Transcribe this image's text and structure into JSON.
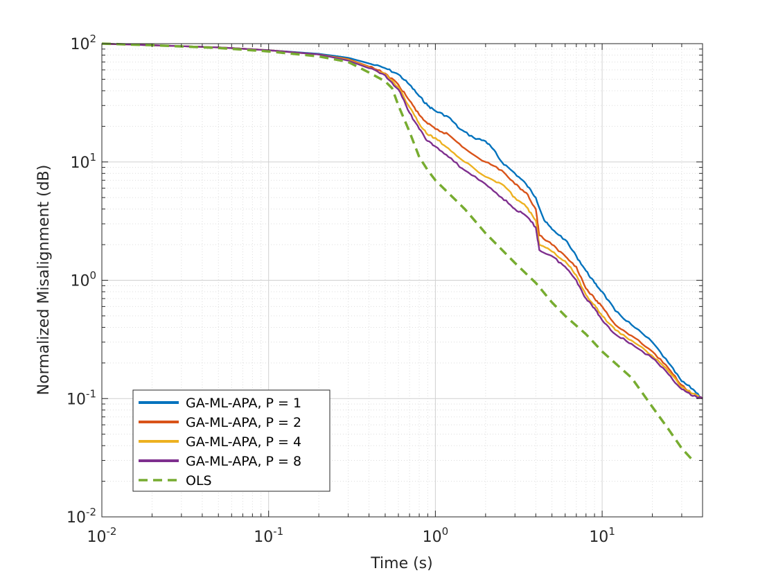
{
  "chart_data": {
    "type": "line",
    "title": "",
    "xlabel": "Time (s)",
    "ylabel": "Normalized Misalignment (dB)",
    "xscale": "log",
    "yscale": "log",
    "xlim": [
      0.01,
      40
    ],
    "ylim": [
      0.01,
      100
    ],
    "grid": true,
    "minor_grid": true,
    "legend_location": "bottom-left",
    "x_ticks": [
      {
        "value": 0.01,
        "base": "10",
        "exp": "-2"
      },
      {
        "value": 0.1,
        "base": "10",
        "exp": "-1"
      },
      {
        "value": 1,
        "base": "10",
        "exp": "0"
      },
      {
        "value": 10,
        "base": "10",
        "exp": "1"
      }
    ],
    "y_ticks": [
      {
        "value": 0.01,
        "base": "10",
        "exp": "-2"
      },
      {
        "value": 0.1,
        "base": "10",
        "exp": "-1"
      },
      {
        "value": 1,
        "base": "10",
        "exp": "0"
      },
      {
        "value": 10,
        "base": "10",
        "exp": "1"
      },
      {
        "value": 100,
        "base": "10",
        "exp": "2"
      }
    ],
    "series": [
      {
        "name": "GA-ML-APA, P = 1",
        "color": "#0072BD",
        "style": "solid",
        "points": [
          [
            0.01,
            100
          ],
          [
            0.02,
            97
          ],
          [
            0.05,
            93
          ],
          [
            0.1,
            88
          ],
          [
            0.2,
            82
          ],
          [
            0.3,
            76
          ],
          [
            0.4,
            68
          ],
          [
            0.5,
            62
          ],
          [
            0.6,
            55
          ],
          [
            0.7,
            45
          ],
          [
            0.8,
            36
          ],
          [
            0.9,
            30
          ],
          [
            1.0,
            27
          ],
          [
            1.2,
            24
          ],
          [
            1.4,
            19
          ],
          [
            1.7,
            16
          ],
          [
            2.0,
            15
          ],
          [
            2.2,
            13
          ],
          [
            2.5,
            10
          ],
          [
            3.0,
            8
          ],
          [
            3.5,
            6.5
          ],
          [
            4.0,
            5
          ],
          [
            4.5,
            3.2
          ],
          [
            5.0,
            2.7
          ],
          [
            6.0,
            2.2
          ],
          [
            7.0,
            1.6
          ],
          [
            8.0,
            1.2
          ],
          [
            9.0,
            0.95
          ],
          [
            10.0,
            0.8
          ],
          [
            12.0,
            0.55
          ],
          [
            15.0,
            0.42
          ],
          [
            20.0,
            0.3
          ],
          [
            25.0,
            0.2
          ],
          [
            30.0,
            0.14
          ],
          [
            35.0,
            0.12
          ],
          [
            40.0,
            0.1
          ]
        ]
      },
      {
        "name": "GA-ML-APA, P = 2",
        "color": "#D95319",
        "style": "solid",
        "points": [
          [
            0.01,
            100
          ],
          [
            0.02,
            97
          ],
          [
            0.05,
            93
          ],
          [
            0.1,
            88
          ],
          [
            0.2,
            81
          ],
          [
            0.3,
            74
          ],
          [
            0.4,
            64
          ],
          [
            0.5,
            56
          ],
          [
            0.6,
            45
          ],
          [
            0.7,
            33
          ],
          [
            0.8,
            25
          ],
          [
            0.9,
            21
          ],
          [
            1.0,
            19
          ],
          [
            1.2,
            17
          ],
          [
            1.5,
            13
          ],
          [
            2.0,
            10
          ],
          [
            2.5,
            8.5
          ],
          [
            3.0,
            6.5
          ],
          [
            3.5,
            5.5
          ],
          [
            4.0,
            4.0
          ],
          [
            4.2,
            2.4
          ],
          [
            5.0,
            2.0
          ],
          [
            6.0,
            1.6
          ],
          [
            7.0,
            1.3
          ],
          [
            8.0,
            0.85
          ],
          [
            9.0,
            0.7
          ],
          [
            10.0,
            0.6
          ],
          [
            12.0,
            0.42
          ],
          [
            15.0,
            0.34
          ],
          [
            20.0,
            0.25
          ],
          [
            25.0,
            0.18
          ],
          [
            30.0,
            0.13
          ],
          [
            35.0,
            0.11
          ],
          [
            40.0,
            0.1
          ]
        ]
      },
      {
        "name": "GA-ML-APA, P = 4",
        "color": "#EDB120",
        "style": "solid",
        "points": [
          [
            0.01,
            100
          ],
          [
            0.02,
            97
          ],
          [
            0.05,
            93
          ],
          [
            0.1,
            88
          ],
          [
            0.2,
            81
          ],
          [
            0.3,
            73
          ],
          [
            0.4,
            63
          ],
          [
            0.5,
            55
          ],
          [
            0.6,
            43
          ],
          [
            0.7,
            29
          ],
          [
            0.8,
            21
          ],
          [
            0.9,
            17
          ],
          [
            1.0,
            16
          ],
          [
            1.2,
            13
          ],
          [
            1.5,
            10
          ],
          [
            2.0,
            7.5
          ],
          [
            2.5,
            6.5
          ],
          [
            3.0,
            5
          ],
          [
            3.5,
            4.2
          ],
          [
            4.0,
            3.2
          ],
          [
            4.2,
            2.0
          ],
          [
            5.0,
            1.75
          ],
          [
            6.0,
            1.45
          ],
          [
            7.0,
            1.1
          ],
          [
            8.0,
            0.75
          ],
          [
            9.0,
            0.62
          ],
          [
            10.0,
            0.5
          ],
          [
            12.0,
            0.38
          ],
          [
            15.0,
            0.31
          ],
          [
            20.0,
            0.23
          ],
          [
            25.0,
            0.17
          ],
          [
            30.0,
            0.125
          ],
          [
            35.0,
            0.11
          ],
          [
            40.0,
            0.1
          ]
        ]
      },
      {
        "name": "GA-ML-APA, P = 8",
        "color": "#7E2F8E",
        "style": "solid",
        "points": [
          [
            0.01,
            100
          ],
          [
            0.02,
            97
          ],
          [
            0.05,
            93
          ],
          [
            0.1,
            88
          ],
          [
            0.2,
            81
          ],
          [
            0.3,
            72
          ],
          [
            0.4,
            62
          ],
          [
            0.5,
            54
          ],
          [
            0.6,
            41
          ],
          [
            0.7,
            26
          ],
          [
            0.8,
            19
          ],
          [
            0.9,
            15
          ],
          [
            1.0,
            13.5
          ],
          [
            1.2,
            11
          ],
          [
            1.5,
            8.5
          ],
          [
            2.0,
            6.5
          ],
          [
            2.5,
            5
          ],
          [
            3.0,
            4.0
          ],
          [
            3.5,
            3.5
          ],
          [
            4.0,
            2.8
          ],
          [
            4.2,
            1.8
          ],
          [
            5.0,
            1.6
          ],
          [
            6.0,
            1.3
          ],
          [
            7.0,
            1.0
          ],
          [
            8.0,
            0.7
          ],
          [
            9.0,
            0.58
          ],
          [
            10.0,
            0.46
          ],
          [
            12.0,
            0.35
          ],
          [
            15.0,
            0.29
          ],
          [
            20.0,
            0.22
          ],
          [
            25.0,
            0.16
          ],
          [
            30.0,
            0.12
          ],
          [
            35.0,
            0.105
          ],
          [
            40.0,
            0.1
          ]
        ]
      },
      {
        "name": "OLS",
        "color": "#77AC30",
        "style": "dashed",
        "points": [
          [
            0.01,
            100
          ],
          [
            0.02,
            97
          ],
          [
            0.05,
            92
          ],
          [
            0.1,
            86
          ],
          [
            0.2,
            78
          ],
          [
            0.3,
            70
          ],
          [
            0.4,
            57
          ],
          [
            0.5,
            48
          ],
          [
            0.55,
            42
          ],
          [
            0.6,
            30
          ],
          [
            0.7,
            18
          ],
          [
            0.8,
            11
          ],
          [
            0.9,
            8.5
          ],
          [
            1.0,
            7
          ],
          [
            1.5,
            4
          ],
          [
            2.0,
            2.5
          ],
          [
            3.0,
            1.4
          ],
          [
            4.0,
            0.95
          ],
          [
            5.0,
            0.65
          ],
          [
            6.0,
            0.5
          ],
          [
            8.0,
            0.35
          ],
          [
            10.0,
            0.25
          ],
          [
            15.0,
            0.15
          ],
          [
            20.0,
            0.085
          ],
          [
            25.0,
            0.055
          ],
          [
            30.0,
            0.038
          ],
          [
            35.0,
            0.03
          ]
        ]
      }
    ]
  }
}
